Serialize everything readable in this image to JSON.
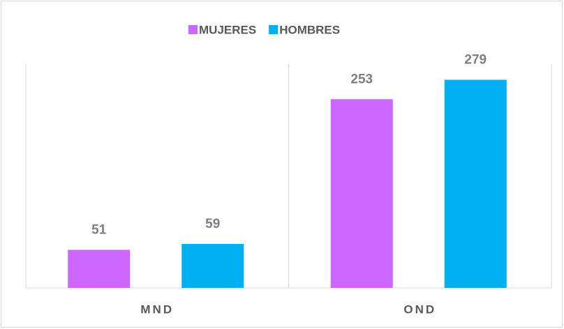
{
  "chart_data": {
    "type": "bar",
    "categories": [
      "MND",
      "OND"
    ],
    "series": [
      {
        "name": "MUJERES",
        "color": "#cc66ff",
        "values": [
          51,
          253
        ]
      },
      {
        "name": "HOMBRES",
        "color": "#00b0f0",
        "values": [
          59,
          279
        ]
      }
    ],
    "ylim": [
      0,
      300
    ],
    "grid": false,
    "legend": "top"
  }
}
